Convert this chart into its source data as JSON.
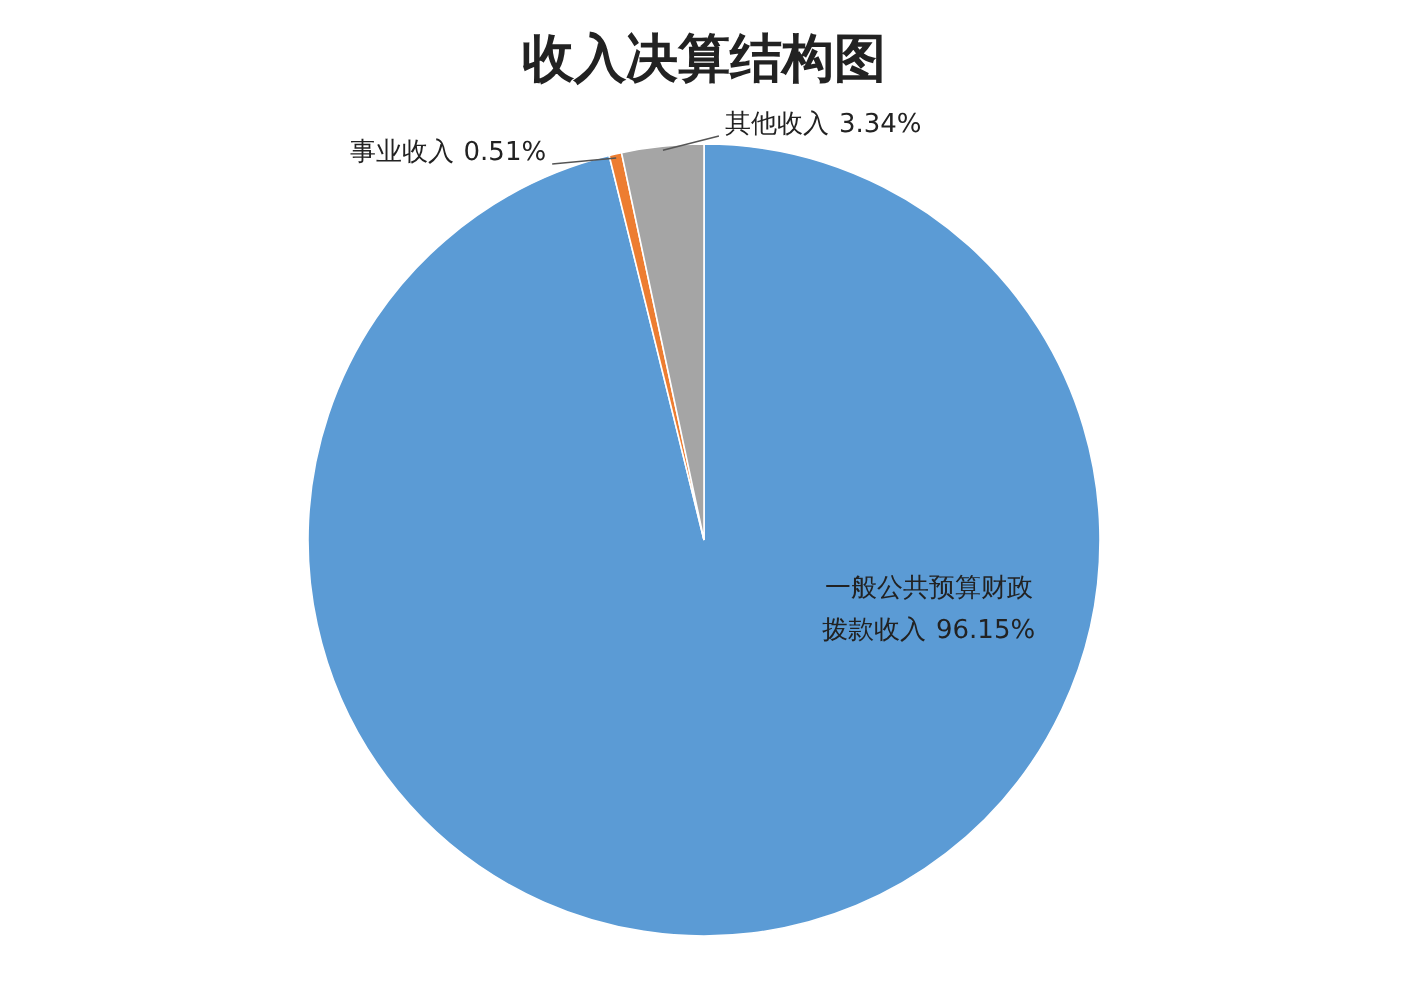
{
  "chart_data": {
    "type": "pie",
    "title": "收入决算结构图",
    "categories": [
      "一般公共预算财政拨款收入",
      "事业收入",
      "其他收入"
    ],
    "values": [
      96.15,
      0.51,
      3.34
    ],
    "colors": [
      "#5b9bd5",
      "#ed7d31",
      "#a5a5a5"
    ],
    "value_labels": [
      "96.15%",
      "0.51%",
      "3.34%"
    ]
  }
}
